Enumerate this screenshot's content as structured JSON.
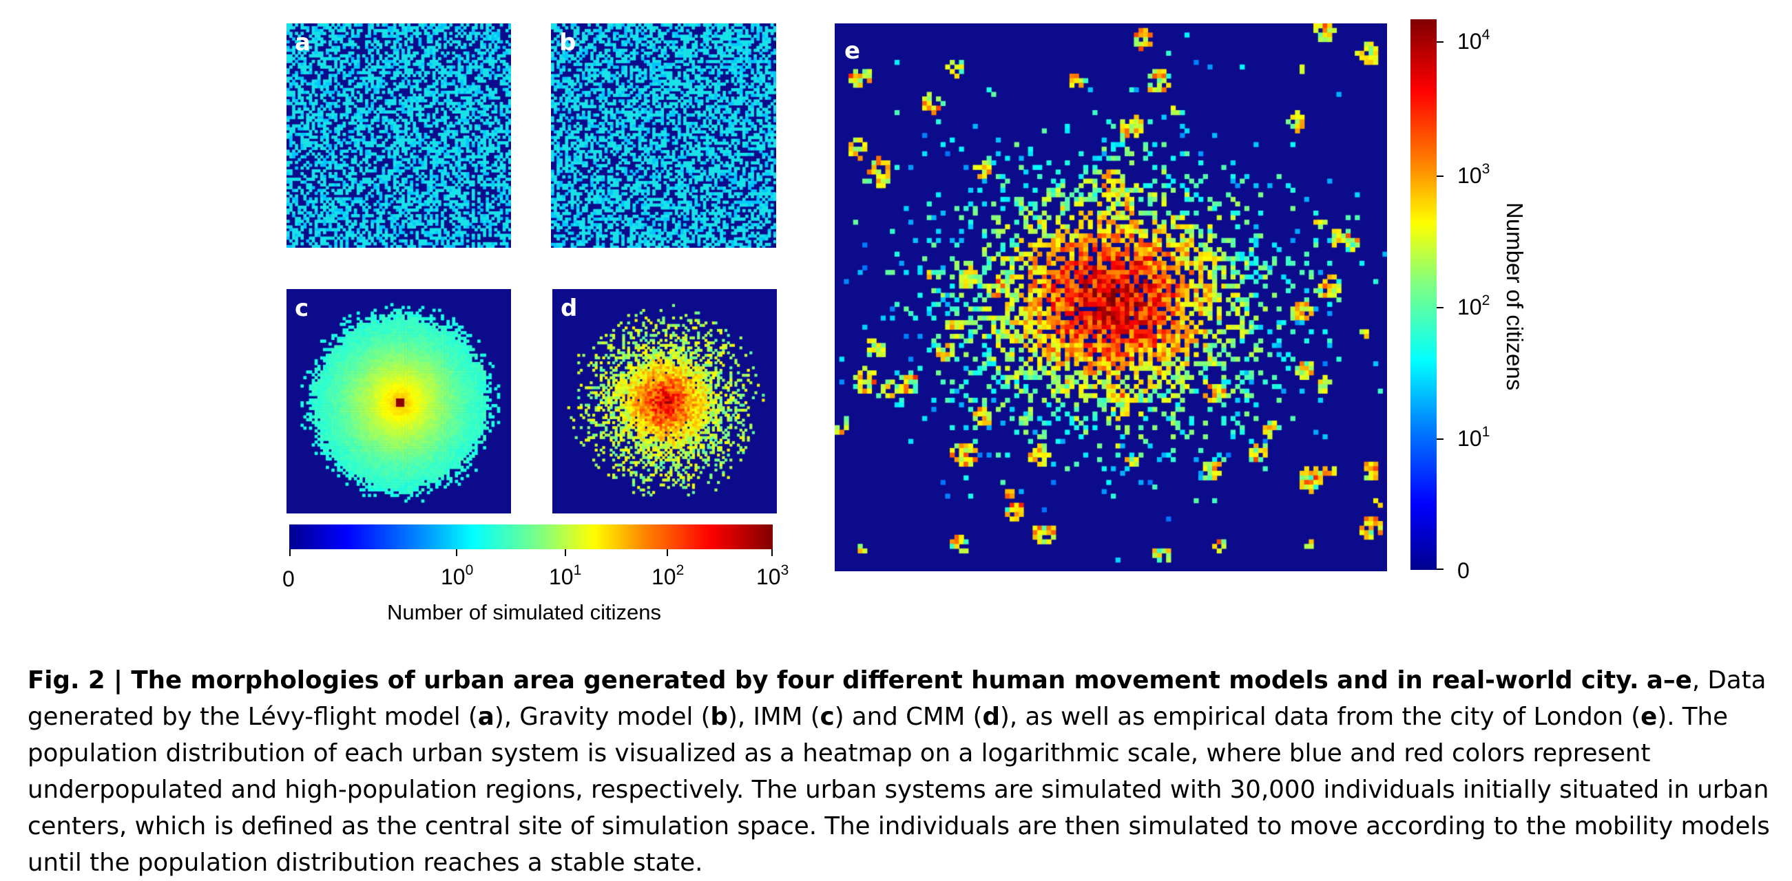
{
  "panels": {
    "a": {
      "label": "a",
      "kind": "uniform",
      "seed": 11
    },
    "b": {
      "label": "b",
      "kind": "uniform",
      "seed": 23
    },
    "c": {
      "label": "c",
      "kind": "radial_smooth",
      "seed": 37
    },
    "d": {
      "label": "d",
      "kind": "radial_noisy",
      "seed": 51
    },
    "e": {
      "label": "e",
      "kind": "city",
      "seed": 77
    }
  },
  "colorbar_sim": {
    "title": "Number of simulated citizens",
    "ticks": [
      {
        "base": "0",
        "exp": ""
      },
      {
        "base": "10",
        "exp": "0"
      },
      {
        "base": "10",
        "exp": "1"
      },
      {
        "base": "10",
        "exp": "2"
      },
      {
        "base": "10",
        "exp": "3"
      }
    ]
  },
  "colorbar_city": {
    "title": "Number of citizens",
    "ticks": [
      {
        "base": "10",
        "exp": "4"
      },
      {
        "base": "10",
        "exp": "3"
      },
      {
        "base": "10",
        "exp": "2"
      },
      {
        "base": "10",
        "exp": "1"
      },
      {
        "base": "0",
        "exp": ""
      }
    ]
  },
  "caption": {
    "fig_label": "Fig. 2 | The morphologies of urban area generated by four different human movement models and in real-world city.",
    "ae": "a–e",
    "text_1": ", Data generated by the Lévy-flight model (",
    "a": "a",
    "text_2": "), Gravity model (",
    "b": "b",
    "text_3": "), IMM (",
    "c": "c",
    "text_4": ") and CMM (",
    "d": "d",
    "text_5": "), as well as empirical data from the city of London (",
    "e": "e",
    "text_6": "). The population distribution of each urban system is visualized as a heatmap on a logarithmic scale, where blue and red colors represent underpopulated and high-population regions, respectively. The urban systems are simulated with 30,000 individuals initially situated in urban centers, which is defined as the central site of simulation space. The individuals are then simulated to move according to the mobility models until the population distribution reaches a stable state."
  }
}
